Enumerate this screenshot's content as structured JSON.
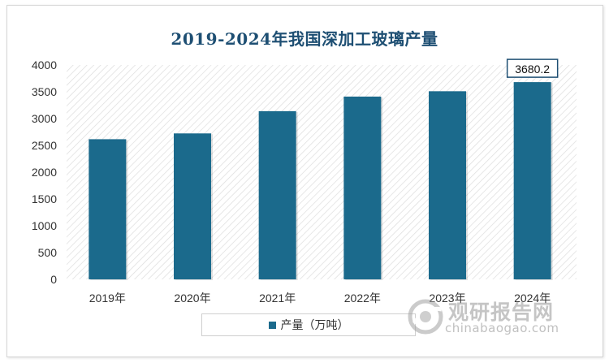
{
  "chart_data": {
    "type": "bar",
    "title": "2019-2024年我国深加工玻璃产量",
    "categories": [
      "2019年",
      "2020年",
      "2021年",
      "2022年",
      "2023年",
      "2024年"
    ],
    "series": [
      {
        "name": "产量（万吨）",
        "values": [
          2615,
          2723,
          3138,
          3410,
          3510,
          3680.2
        ]
      }
    ],
    "ylim": [
      0,
      4000
    ],
    "yticks": [
      "0",
      "500",
      "1000",
      "1500",
      "2000",
      "2500",
      "3000",
      "3500",
      "4000"
    ],
    "data_labels": [
      {
        "category": "2024年",
        "text": "3680.2"
      }
    ],
    "xlabel": "",
    "ylabel": "",
    "legend_position": "bottom",
    "grid": false,
    "bar_color": "#1b6a8c",
    "title_color": "#1e4f73"
  },
  "watermark": {
    "cn": "观研报告网",
    "en": "chinabaogao.com"
  }
}
